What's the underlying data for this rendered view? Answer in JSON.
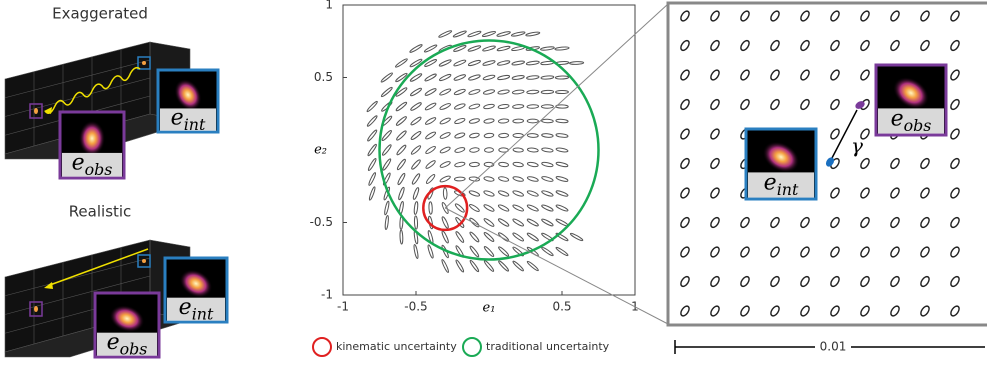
{
  "panels": {
    "exaggerated": {
      "title": "Exaggerated",
      "obs": {
        "base": "e",
        "sub": "obs"
      },
      "int": {
        "base": "e",
        "sub": "int"
      }
    },
    "realistic": {
      "title": "Realistic",
      "obs": {
        "base": "e",
        "sub": "obs"
      },
      "int": {
        "base": "e",
        "sub": "int"
      }
    }
  },
  "chart_data": {
    "type": "ellipse_field",
    "xlabel": "e₁",
    "ylabel": "e₂",
    "xlim": [
      -1,
      1
    ],
    "ylim": [
      -1,
      1
    ],
    "xticks": [
      -1,
      -0.5,
      0.5,
      1
    ],
    "yticks": [
      -1,
      -0.5,
      0.5,
      1
    ],
    "series": [
      {
        "name": "kinematic uncertainty",
        "color": "#e02020",
        "cx": -0.3,
        "cy": -0.4,
        "r": 0.15
      },
      {
        "name": "traditional uncertainty",
        "color": "#1aaa55",
        "cx": 0,
        "cy": 0,
        "r": 0.75
      }
    ]
  },
  "zoom": {
    "obs": {
      "base": "e",
      "sub": "obs"
    },
    "int": {
      "base": "e",
      "sub": "int"
    },
    "shift_label": "γ",
    "scale_label": "0.01"
  }
}
